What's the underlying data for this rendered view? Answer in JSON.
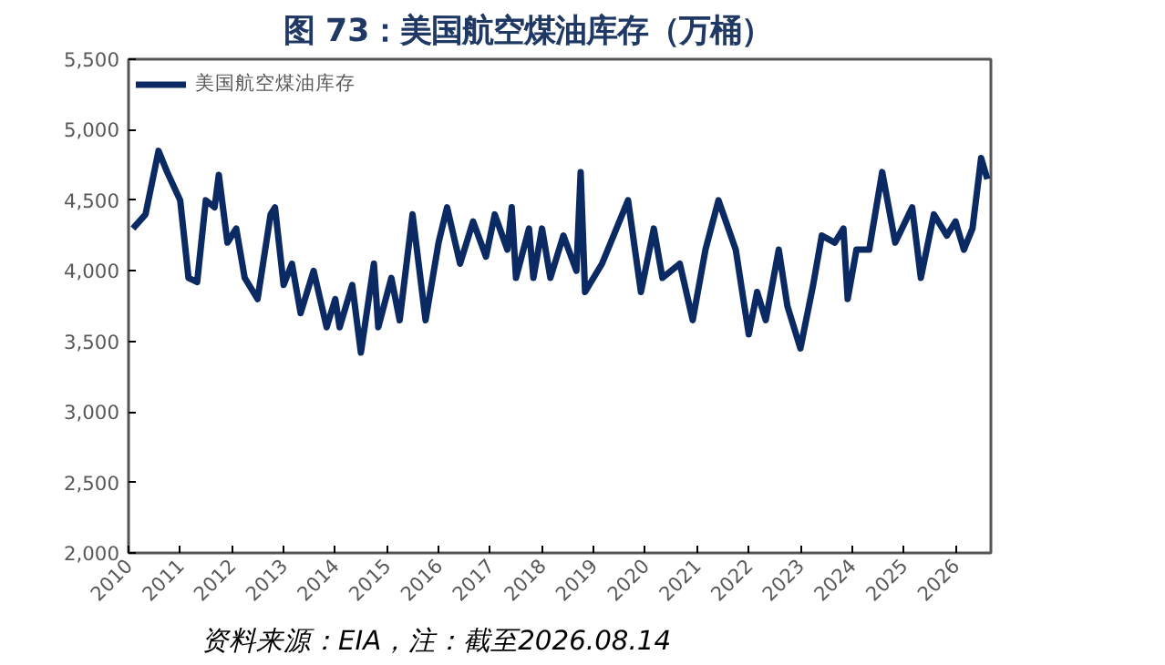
{
  "chart_data": {
    "type": "line",
    "title": "图 73：美国航空煤油库存（万桶）",
    "annotations": [
      "资料来源：EIA，注：截至2026.08.14"
    ],
    "x": [
      "2010-02",
      "2010-05",
      "2010-08",
      "2010-10",
      "2011-01",
      "2011-03",
      "2011-05",
      "2011-07",
      "2011-09",
      "2011-10",
      "2011-12",
      "2012-02",
      "2012-04",
      "2012-07",
      "2012-10",
      "2012-11",
      "2013-01",
      "2013-03",
      "2013-05",
      "2013-08",
      "2013-11",
      "2014-01",
      "2014-02",
      "2014-05",
      "2014-07",
      "2014-10",
      "2014-11",
      "2015-02",
      "2015-04",
      "2015-07",
      "2015-08",
      "2015-10",
      "2016-01",
      "2016-03",
      "2016-06",
      "2016-09",
      "2016-12",
      "2017-02",
      "2017-05",
      "2017-06",
      "2017-07",
      "2017-10",
      "2017-11",
      "2018-01",
      "2018-03",
      "2018-06",
      "2018-09",
      "2018-10",
      "2018-11",
      "2019-03",
      "2019-09",
      "2019-12",
      "2020-03",
      "2020-05",
      "2020-09",
      "2020-12",
      "2021-03",
      "2021-06",
      "2021-10",
      "2022-01",
      "2022-03",
      "2022-05",
      "2022-08",
      "2022-10",
      "2023-01",
      "2023-04",
      "2023-06",
      "2023-09",
      "2023-11",
      "2023-12",
      "2024-02",
      "2024-05",
      "2024-08",
      "2024-11",
      "2025-03",
      "2025-05",
      "2025-08",
      "2025-11",
      "2026-01",
      "2026-03",
      "2026-05",
      "2026-07",
      "2026-08-14"
    ],
    "series": [
      {
        "name": "美国航空煤油库存",
        "color": "#0b2a63",
        "values": [
          4300,
          4400,
          4850,
          4700,
          4500,
          3950,
          3920,
          4500,
          4450,
          4680,
          4200,
          4300,
          3950,
          3800,
          4400,
          4450,
          3900,
          4050,
          3700,
          4000,
          3600,
          3800,
          3600,
          3900,
          3420,
          4050,
          3600,
          3950,
          3650,
          4400,
          4150,
          3650,
          4200,
          4450,
          4050,
          4350,
          4100,
          4400,
          4150,
          4450,
          3950,
          4300,
          3950,
          4300,
          3950,
          4250,
          4000,
          4700,
          3850,
          4050,
          4500,
          3850,
          4300,
          3950,
          4050,
          3650,
          4150,
          4500,
          4150,
          3550,
          3850,
          3650,
          4150,
          3750,
          3450,
          3900,
          4250,
          4200,
          4300,
          3800,
          4150,
          4150,
          4700,
          4200,
          4450,
          3950,
          4400,
          4250,
          4350,
          4150,
          4300,
          4800,
          4650
        ]
      }
    ],
    "xlim": [
      "2010-01-01",
      "2026-09-08"
    ],
    "xticks": [
      {
        "value": "2010",
        "label": "2010"
      },
      {
        "value": "2011",
        "label": "2011"
      },
      {
        "value": "2012",
        "label": "2012"
      },
      {
        "value": "2013",
        "label": "2013"
      },
      {
        "value": "2014",
        "label": "2014"
      },
      {
        "value": "2015",
        "label": "2015"
      },
      {
        "value": "2016",
        "label": "2016"
      },
      {
        "value": "2017",
        "label": "2017"
      },
      {
        "value": "2018",
        "label": "2018"
      },
      {
        "value": "2019",
        "label": "2019"
      },
      {
        "value": "2020",
        "label": "2020"
      },
      {
        "value": "2021",
        "label": "2021"
      },
      {
        "value": "2022",
        "label": "2022"
      },
      {
        "value": "2023",
        "label": "2023"
      },
      {
        "value": "2024",
        "label": "2024"
      },
      {
        "value": "2025",
        "label": "2025"
      },
      {
        "value": "2026",
        "label": "2026"
      }
    ],
    "ylim": [
      2000,
      5500
    ],
    "yticks": [
      {
        "value": 2000,
        "label": "2,000"
      },
      {
        "value": 2500,
        "label": "2,500"
      },
      {
        "value": 3000,
        "label": "3,000"
      },
      {
        "value": 3500,
        "label": "3,500"
      },
      {
        "value": 4000,
        "label": "4,000"
      },
      {
        "value": 4500,
        "label": "4,500"
      },
      {
        "value": 5000,
        "label": "5,000"
      },
      {
        "value": 5500,
        "label": "5,500"
      }
    ],
    "grid": false,
    "legend": "top left",
    "line_style": "solid",
    "marker": "none"
  }
}
